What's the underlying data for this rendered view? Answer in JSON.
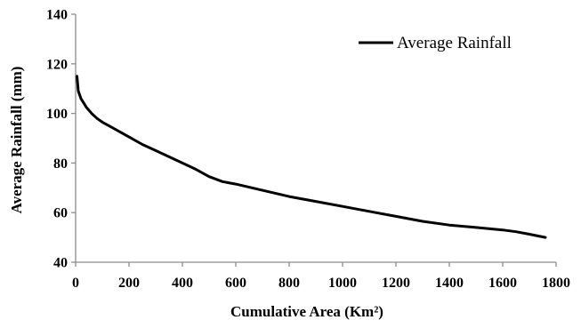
{
  "chart_data": {
    "type": "line",
    "title": "",
    "xlabel": "Cumulative Area (Km²)",
    "ylabel": "Average Rainfall (mm)",
    "xlim": [
      0,
      1800
    ],
    "ylim": [
      40,
      140
    ],
    "x_ticks": [
      0,
      200,
      400,
      600,
      800,
      1000,
      1200,
      1400,
      1600,
      1800
    ],
    "y_ticks": [
      40,
      60,
      80,
      100,
      120,
      140
    ],
    "x_tick_labels": [
      "0",
      "200",
      "400",
      "600",
      "800",
      "1000",
      "1200",
      "1400",
      "1600",
      "1800"
    ],
    "y_tick_labels": [
      "40",
      "60",
      "80",
      "100",
      "120",
      "140"
    ],
    "grid": false,
    "legend": {
      "position": "top-right",
      "entries": [
        "Average Rainfall"
      ]
    },
    "line_color": "#000000",
    "series": [
      {
        "name": "Average Rainfall",
        "x": [
          5,
          10,
          20,
          40,
          60,
          80,
          100,
          150,
          200,
          250,
          300,
          350,
          400,
          450,
          500,
          550,
          600,
          700,
          800,
          900,
          1000,
          1100,
          1200,
          1300,
          1400,
          1500,
          1600,
          1650,
          1700,
          1760
        ],
        "y": [
          115,
          109,
          106,
          102.5,
          100,
          98,
          96.5,
          93.5,
          90.5,
          87.5,
          85,
          82.5,
          80,
          77.5,
          74.5,
          72.5,
          71.5,
          69,
          66.5,
          64.5,
          62.5,
          60.5,
          58.5,
          56.5,
          55,
          54,
          53,
          52.3,
          51.3,
          50
        ]
      }
    ]
  }
}
